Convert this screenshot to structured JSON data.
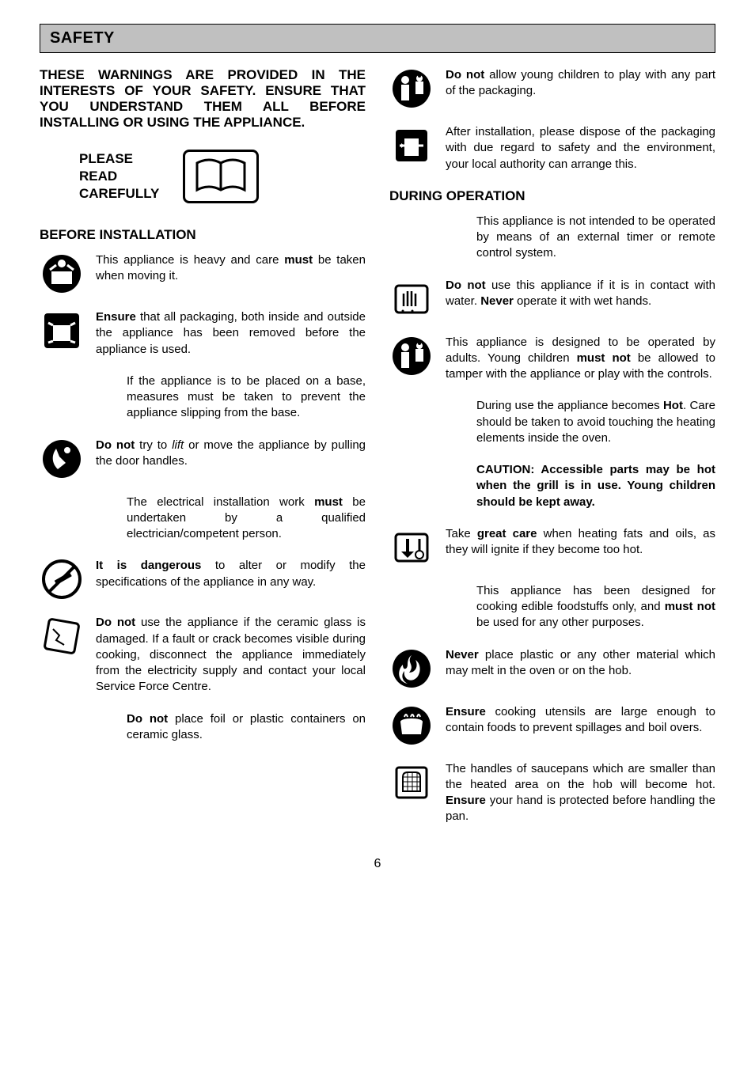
{
  "page_number": "6",
  "header": {
    "title": "SAFETY"
  },
  "intro": "THESE WARNINGS ARE PROVIDED IN THE INTERESTS OF YOUR SAFETY. ENSURE THAT YOU UNDERSTAND THEM ALL BEFORE INSTALLING OR USING THE APPLIANCE.",
  "read_label": "PLEASE\nREAD\nCAREFULLY",
  "sections": {
    "before": "BEFORE INSTALLATION",
    "during": "DURING OPERATION"
  },
  "left_items": [
    {
      "icon": "lifting",
      "parts": [
        {
          "t": "This appliance is heavy and care "
        },
        {
          "t": "must",
          "b": true
        },
        {
          "t": " be taken when moving it."
        }
      ]
    },
    {
      "icon": "unbox",
      "parts": [
        {
          "t": "Ensure",
          "b": true
        },
        {
          "t": " that all packaging, both inside and outside the appliance has been removed before the appliance is used."
        }
      ]
    },
    {
      "icon": "",
      "parts": [
        {
          "t": "If the appliance is to be placed on a base, measures must be taken to prevent the appliance slipping from the base."
        }
      ]
    },
    {
      "icon": "slip",
      "parts": [
        {
          "t": "Do not",
          "b": true
        },
        {
          "t": " try to "
        },
        {
          "t": "lift",
          "i": true
        },
        {
          "t": " or move the appliance by pulling the door handles."
        }
      ]
    },
    {
      "icon": "",
      "parts": [
        {
          "t": "The electrical installation work "
        },
        {
          "t": "must",
          "b": true
        },
        {
          "t": " be undertaken by a qualified electrician/competent person."
        }
      ]
    },
    {
      "icon": "nomod",
      "parts": [
        {
          "t": "It is dangerous",
          "b": true
        },
        {
          "t": " to alter or modify the specifications of the appliance in any way."
        }
      ]
    },
    {
      "icon": "crack",
      "parts": [
        {
          "t": "Do not",
          "b": true
        },
        {
          "t": " use the appliance if the ceramic glass is damaged. If a fault or crack becomes visible during cooking, disconnect the appliance immediately from the electricity supply and contact your local Service Force Centre."
        }
      ]
    },
    {
      "icon": "",
      "parts": [
        {
          "t": "Do not",
          "b": true
        },
        {
          "t": " place foil or plastic containers on ceramic glass."
        }
      ]
    }
  ],
  "right_top": [
    {
      "icon": "child",
      "parts": [
        {
          "t": "Do not",
          "b": true
        },
        {
          "t": " allow young children to play with any part of the packaging."
        }
      ]
    },
    {
      "icon": "dispose",
      "parts": [
        {
          "t": "After installation, please dispose of the packaging with due regard to safety and the environment, your local authority can arrange this."
        }
      ]
    }
  ],
  "right_items": [
    {
      "icon": "",
      "parts": [
        {
          "t": "This appliance is not intended to be operated by means of an external timer or remote control system."
        }
      ]
    },
    {
      "icon": "wethands",
      "parts": [
        {
          "t": "Do not",
          "b": true
        },
        {
          "t": " use this appliance if it is in contact with water.   "
        },
        {
          "t": "Never",
          "b": true
        },
        {
          "t": " operate it with wet hands."
        }
      ]
    },
    {
      "icon": "child",
      "parts": [
        {
          "t": "This appliance is designed to be operated by adults.  Young children "
        },
        {
          "t": "must not",
          "b": true
        },
        {
          "t": " be allowed to tamper with the appliance or play with the controls."
        }
      ]
    },
    {
      "icon": "",
      "parts": [
        {
          "t": "During use the appliance becomes "
        },
        {
          "t": "Hot",
          "b": true
        },
        {
          "t": ".  Care should be taken to avoid touching the heating elements inside the oven."
        }
      ]
    },
    {
      "icon": "",
      "parts": [
        {
          "t": "CAUTION: Accessible parts may be hot when the grill is in use.  Young children should be kept away.",
          "b": true
        }
      ]
    },
    {
      "icon": "temp",
      "parts": [
        {
          "t": "Take "
        },
        {
          "t": "great care",
          "b": true
        },
        {
          "t": " when heating fats and oils, as they will ignite if they become too hot."
        }
      ]
    },
    {
      "icon": "",
      "parts": [
        {
          "t": "This appliance has been designed for cooking edible foodstuffs only, and "
        },
        {
          "t": "must not",
          "b": true
        },
        {
          "t": " be used for any other purposes."
        }
      ]
    },
    {
      "icon": "fire",
      "parts": [
        {
          "t": "Never",
          "b": true
        },
        {
          "t": " place plastic or any other material which may melt in the oven or on the hob."
        }
      ]
    },
    {
      "icon": "pot",
      "parts": [
        {
          "t": "Ensure",
          "b": true
        },
        {
          "t": " cooking utensils are large enough to contain foods to prevent spillages and boil overs."
        }
      ]
    },
    {
      "icon": "glove",
      "parts": [
        {
          "t": "The handles of saucepans which are smaller than the heated area on the hob will become hot.  "
        },
        {
          "t": "Ensure",
          "b": true
        },
        {
          "t": " your hand is protected before handling the pan."
        }
      ]
    }
  ],
  "colors": {
    "header_bg": "#c0c0c0",
    "text": "#000000",
    "bg": "#ffffff"
  }
}
